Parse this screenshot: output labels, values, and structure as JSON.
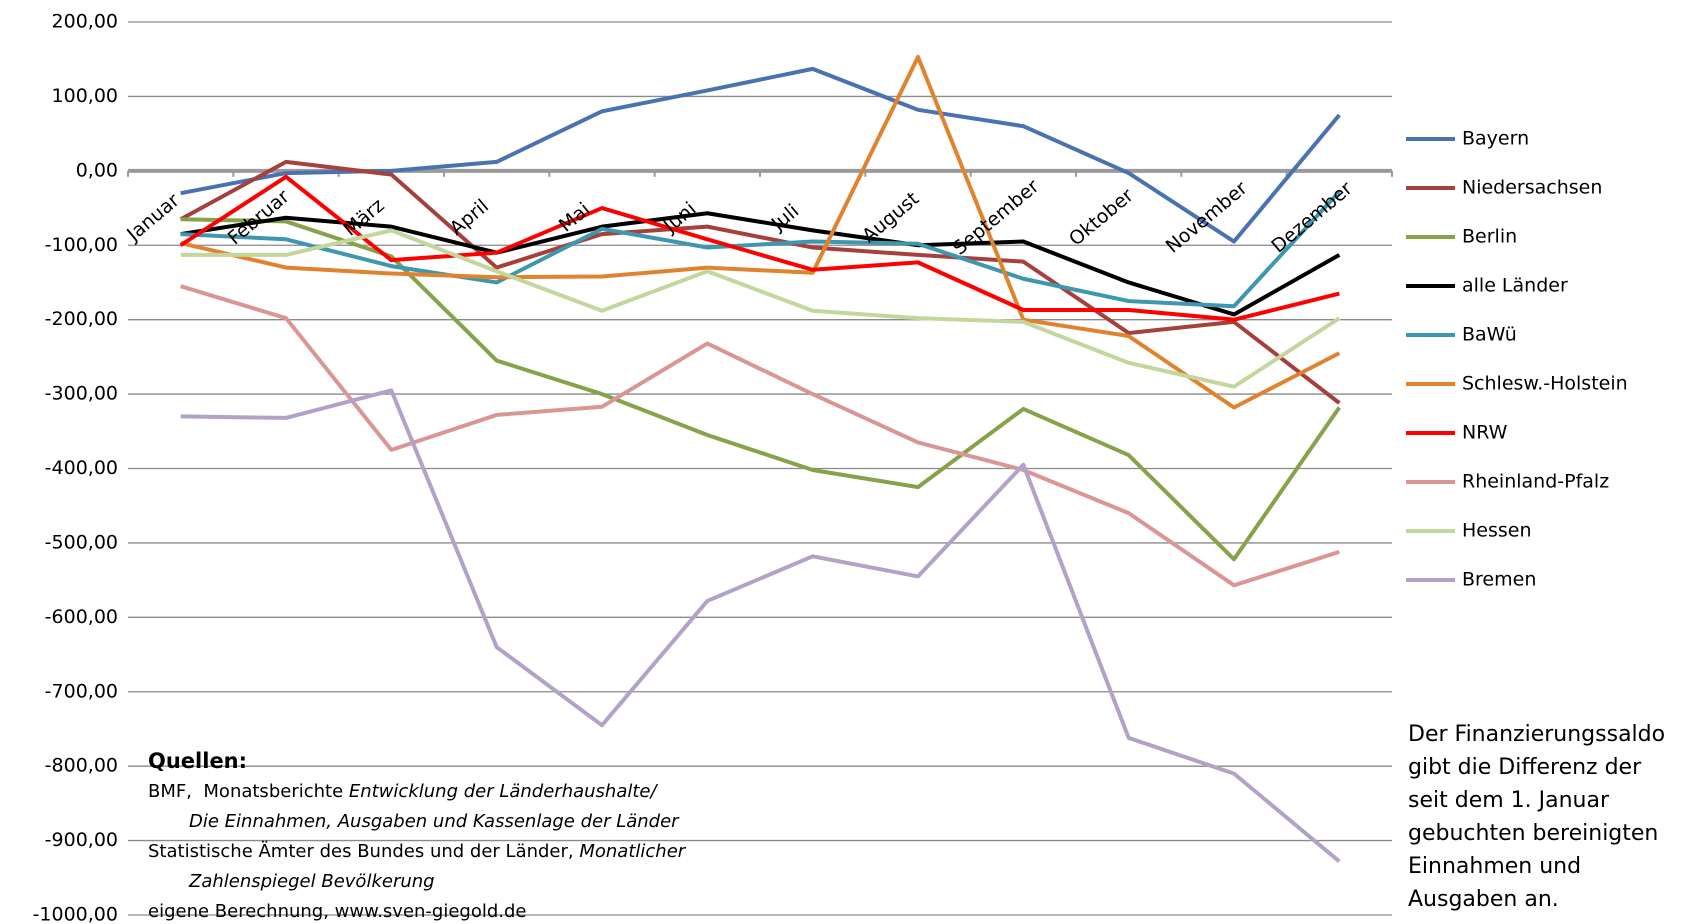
{
  "chart_data": {
    "type": "line",
    "categories": [
      "Januar",
      "Februar",
      "März",
      "April",
      "Mai",
      "Juni",
      "Juli",
      "August",
      "September",
      "Oktober",
      "November",
      "Dezember"
    ],
    "ylim": [
      -1000,
      200
    ],
    "yticks": [
      {
        "value": 200,
        "label": "200,00"
      },
      {
        "value": 100,
        "label": "100,00"
      },
      {
        "value": 0,
        "label": "0,00"
      },
      {
        "value": -100,
        "label": "-100,00"
      },
      {
        "value": -200,
        "label": "-200,00"
      },
      {
        "value": -300,
        "label": "-300,00"
      },
      {
        "value": -400,
        "label": "-400,00"
      },
      {
        "value": -500,
        "label": "-500,00"
      },
      {
        "value": -600,
        "label": "-600,00"
      },
      {
        "value": -700,
        "label": "-700,00"
      },
      {
        "value": -800,
        "label": "-800,00"
      },
      {
        "value": -900,
        "label": "-900,00"
      },
      {
        "value": -1000,
        "label": "-1000,00"
      }
    ],
    "grid": true,
    "legend": "right",
    "series": [
      {
        "name": "Bayern",
        "color": "#4a72b0",
        "values": [
          -30,
          -3,
          0,
          12,
          80,
          108,
          137,
          82,
          60,
          -3,
          -95,
          75
        ]
      },
      {
        "name": "Niedersachsen",
        "color": "#a5403d",
        "values": [
          -65,
          12,
          -5,
          -130,
          -85,
          -75,
          -103,
          -113,
          -122,
          -218,
          -203,
          -312
        ]
      },
      {
        "name": "Berlin",
        "color": "#86a24a",
        "values": [
          -65,
          -68,
          -115,
          -255,
          -300,
          -355,
          -402,
          -425,
          -320,
          -382,
          -522,
          -318
        ]
      },
      {
        "name": "alle Länder",
        "color": "#000000",
        "values": [
          -85,
          -63,
          -75,
          -110,
          -75,
          -57,
          -80,
          -100,
          -95,
          -150,
          -193,
          -113
        ]
      },
      {
        "name": "BaWü",
        "color": "#3d97ae",
        "values": [
          -85,
          -92,
          -128,
          -150,
          -78,
          -103,
          -95,
          -98,
          -145,
          -175,
          -182,
          -28
        ]
      },
      {
        "name": "Schlesw.-Holstein",
        "color": "#e0832f",
        "values": [
          -97,
          -130,
          -138,
          -143,
          -142,
          -130,
          -137,
          153,
          -200,
          -222,
          -318,
          -245
        ]
      },
      {
        "name": "NRW",
        "color": "#ff0000",
        "values": [
          -100,
          -8,
          -120,
          -110,
          -50,
          -92,
          -133,
          -123,
          -187,
          -187,
          -200,
          -165
        ]
      },
      {
        "name": "Rheinland-Pfalz",
        "color": "#d99694",
        "values": [
          -155,
          -198,
          -375,
          -328,
          -317,
          -232,
          -300,
          -365,
          -402,
          -460,
          -557,
          -512
        ]
      },
      {
        "name": "Hessen",
        "color": "#c3d69b",
        "values": [
          -113,
          -113,
          -80,
          -135,
          -188,
          -135,
          -188,
          -198,
          -203,
          -258,
          -290,
          -198
        ]
      },
      {
        "name": "Bremen",
        "color": "#b3a2c7",
        "values": [
          -330,
          -332,
          -295,
          -640,
          -745,
          -578,
          -518,
          -545,
          -395,
          -762,
          -810,
          -928
        ]
      }
    ],
    "sources": {
      "heading": "Quellen:",
      "lines": [
        {
          "segments": [
            {
              "text": "BMF,  Monatsberichte "
            },
            {
              "text": "Entwicklung der Länderhaushalte/",
              "italic": true
            }
          ]
        },
        {
          "indent": true,
          "segments": [
            {
              "text": "Die Einnahmen, Ausgaben und Kassenlage der Länder",
              "italic": true
            }
          ]
        },
        {
          "segments": [
            {
              "text": "Statistische Ämter des Bundes und der Länder, "
            },
            {
              "text": "Monatlicher",
              "italic": true
            }
          ]
        },
        {
          "indent": true,
          "segments": [
            {
              "text": "Zahlenspiegel Bevölkerung",
              "italic": true
            }
          ]
        },
        {
          "segments": [
            {
              "text": "eigene Berechnung, www.sven-giegold.de"
            }
          ]
        }
      ]
    },
    "note": [
      "Der Finanzierungssaldo",
      "gibt die Differenz der",
      "seit dem 1. Januar",
      "gebuchten bereinigten",
      "Einnahmen und",
      "Ausgaben an."
    ]
  }
}
